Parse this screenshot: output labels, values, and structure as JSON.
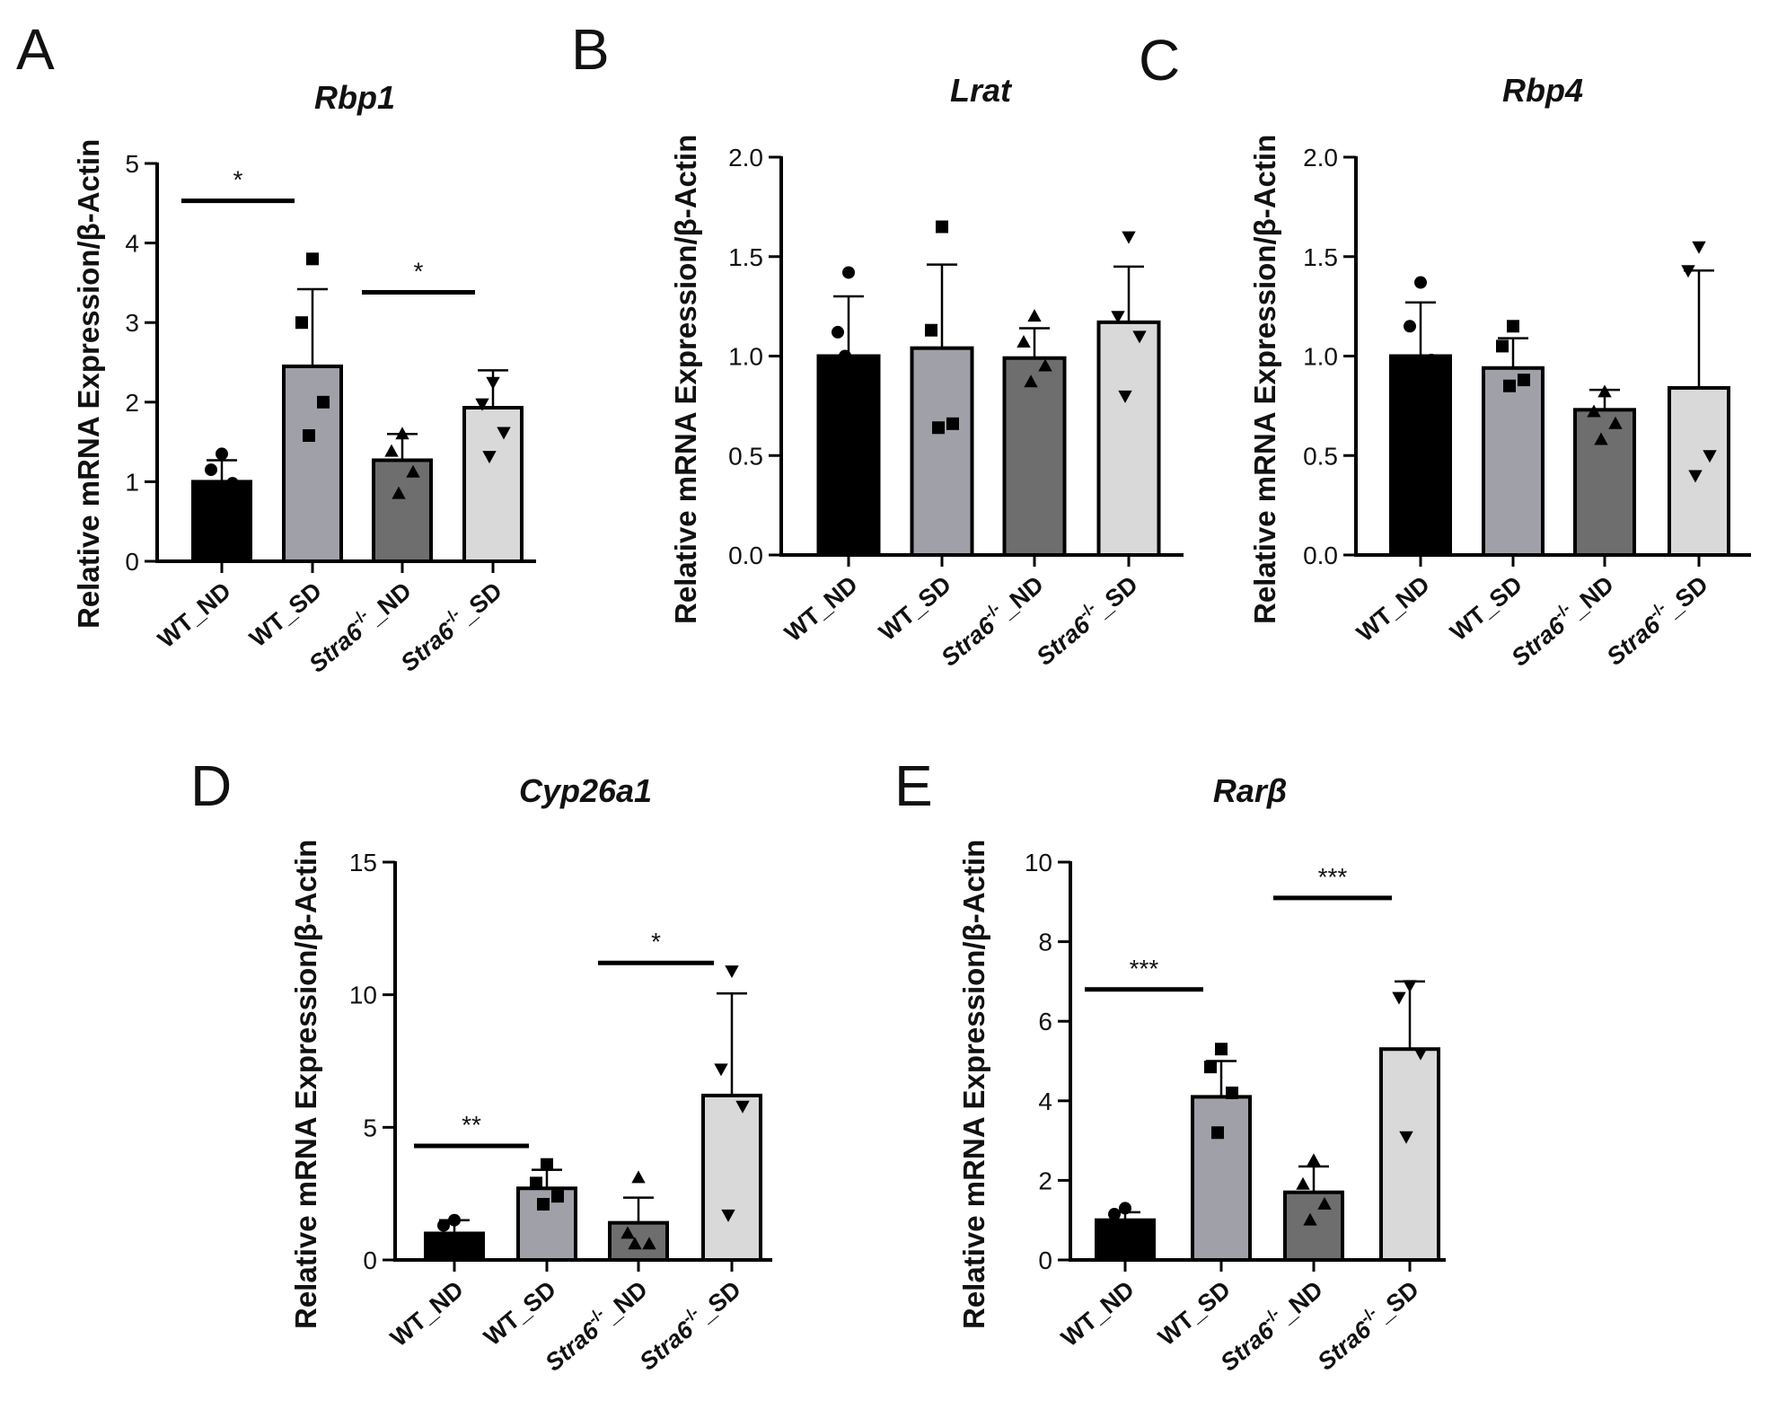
{
  "chart_data": [
    {
      "panel": "A",
      "type": "bar",
      "title": "Rbp1",
      "ylabel": "Relative mRNA Expression/β-Actin",
      "xlabel": "",
      "ylim": [
        0,
        5
      ],
      "yticks": [
        "0",
        "1",
        "2",
        "3",
        "4",
        "5"
      ],
      "categories": [
        "WT_ND",
        "WT_SD",
        "Stra6-/-_ND",
        "Stra6-/-_SD"
      ],
      "values": [
        1.0,
        2.45,
        1.27,
        1.93
      ],
      "error_upper": [
        1.27,
        3.42,
        1.6,
        2.4
      ],
      "points": [
        [
          1.35,
          1.15,
          0.98,
          0.92
        ],
        [
          3.8,
          3.0,
          2.0,
          1.58
        ],
        [
          1.6,
          1.38,
          1.12,
          0.85
        ],
        [
          2.25,
          1.98,
          1.62,
          1.32
        ]
      ],
      "markers": [
        "circle",
        "square",
        "triangle-up",
        "triangle-down"
      ],
      "significance": [
        {
          "from": 0,
          "to": 1,
          "label": "*",
          "y": 4.53
        },
        {
          "from": 2,
          "to": 3,
          "label": "*",
          "y": 3.38
        }
      ]
    },
    {
      "panel": "B",
      "type": "bar",
      "title": "Lrat",
      "ylabel": "Relative mRNA Expression/β-Actin",
      "xlabel": "",
      "ylim": [
        0,
        2.0
      ],
      "yticks": [
        "0.0",
        "0.5",
        "1.0",
        "1.5",
        "2.0"
      ],
      "categories": [
        "WT_ND",
        "WT_SD",
        "Stra6-/-_ND",
        "Stra6-/-_SD"
      ],
      "values": [
        1.0,
        1.04,
        0.99,
        1.17
      ],
      "error_upper": [
        1.3,
        1.46,
        1.14,
        1.45
      ],
      "points": [
        [
          1.42,
          1.12,
          0.97,
          1.0
        ],
        [
          1.65,
          1.13,
          0.66,
          0.64
        ],
        [
          1.2,
          1.07,
          0.95,
          0.87
        ],
        [
          1.6,
          1.2,
          1.1,
          0.8
        ]
      ],
      "markers": [
        "circle",
        "square",
        "triangle-up",
        "triangle-down"
      ],
      "significance": []
    },
    {
      "panel": "C",
      "type": "bar",
      "title": "Rbp4",
      "ylabel": "Relative mRNA Expression/β-Actin",
      "xlabel": "",
      "ylim": [
        0,
        2.0
      ],
      "yticks": [
        "0.0",
        "0.5",
        "1.0",
        "1.5",
        "2.0"
      ],
      "categories": [
        "WT_ND",
        "WT_SD",
        "Stra6-/-_ND",
        "Stra6-/-_SD"
      ],
      "values": [
        1.0,
        0.94,
        0.73,
        0.84
      ],
      "error_upper": [
        1.27,
        1.09,
        0.83,
        1.43
      ],
      "points": [
        [
          1.37,
          1.15,
          0.98,
          0.82
        ],
        [
          1.15,
          1.05,
          0.88,
          0.85
        ],
        [
          0.82,
          0.72,
          0.66,
          0.58
        ],
        [
          1.55,
          1.43,
          0.5,
          0.4
        ]
      ],
      "markers": [
        "circle",
        "square",
        "triangle-up",
        "triangle-down"
      ],
      "significance": []
    },
    {
      "panel": "D",
      "type": "bar",
      "title": "Cyp26a1",
      "ylabel": "Relative mRNA Expression/β-Actin",
      "xlabel": "",
      "ylim": [
        0,
        15
      ],
      "yticks": [
        "0",
        "5",
        "10",
        "15"
      ],
      "categories": [
        "WT_ND",
        "WT_SD",
        "Stra6-/-_ND",
        "Stra6-/-_SD"
      ],
      "values": [
        1.0,
        2.7,
        1.4,
        6.2
      ],
      "error_upper": [
        1.5,
        3.4,
        2.35,
        10.05
      ],
      "points": [
        [
          1.5,
          1.3,
          0.7,
          0.4
        ],
        [
          3.6,
          2.9,
          2.4,
          2.1
        ],
        [
          3.1,
          1.0,
          0.6,
          0.6
        ],
        [
          10.9,
          7.2,
          5.8,
          1.7
        ]
      ],
      "markers": [
        "circle",
        "square",
        "triangle-up",
        "triangle-down"
      ],
      "significance": [
        {
          "from": 0,
          "to": 1,
          "label": "**",
          "y": 4.3
        },
        {
          "from": 2,
          "to": 3,
          "label": "*",
          "y": 11.2
        }
      ]
    },
    {
      "panel": "E",
      "type": "bar",
      "title": "Rarβ",
      "ylabel": "Relative mRNA Expression/β-Actin",
      "xlabel": "",
      "ylim": [
        0,
        10
      ],
      "yticks": [
        "0",
        "2",
        "4",
        "6",
        "8",
        "10"
      ],
      "categories": [
        "WT_ND",
        "WT_SD",
        "Stra6-/-_ND",
        "Stra6-/-_SD"
      ],
      "values": [
        1.0,
        4.1,
        1.7,
        5.3
      ],
      "error_upper": [
        1.2,
        5.0,
        2.35,
        7.0
      ],
      "points": [
        [
          1.3,
          1.15,
          0.8,
          0.7
        ],
        [
          5.3,
          4.85,
          4.2,
          3.2
        ],
        [
          2.5,
          1.9,
          1.4,
          1.0
        ],
        [
          6.9,
          6.6,
          5.2,
          3.1
        ]
      ],
      "markers": [
        "circle",
        "square",
        "triangle-up",
        "triangle-down"
      ],
      "significance": [
        {
          "from": 0,
          "to": 1,
          "label": "***",
          "y": 6.8
        },
        {
          "from": 2,
          "to": 3,
          "label": "***",
          "y": 9.1
        }
      ]
    }
  ],
  "categories_display": [
    {
      "prefix": "WT_ND",
      "sup": "",
      "suffix": ""
    },
    {
      "prefix": "WT_SD",
      "sup": "",
      "suffix": ""
    },
    {
      "prefix": "Stra6",
      "sup": "-/-",
      "suffix": "_ND"
    },
    {
      "prefix": "Stra6",
      "sup": "-/-",
      "suffix": "_SD"
    }
  ],
  "bar_colors": [
    "#000000",
    "#a0a0a8",
    "#6e6e6e",
    "#d9d9d9"
  ]
}
